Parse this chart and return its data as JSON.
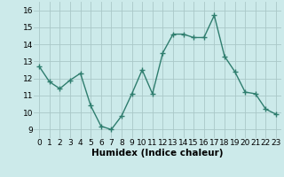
{
  "x": [
    0,
    1,
    2,
    3,
    4,
    5,
    6,
    7,
    8,
    9,
    10,
    11,
    12,
    13,
    14,
    15,
    16,
    17,
    18,
    19,
    20,
    21,
    22,
    23
  ],
  "y": [
    12.7,
    11.8,
    11.4,
    11.9,
    12.3,
    10.4,
    9.2,
    9.0,
    9.8,
    11.1,
    12.5,
    11.1,
    13.5,
    14.6,
    14.6,
    14.4,
    14.4,
    15.7,
    13.3,
    12.4,
    11.2,
    11.1,
    10.2,
    9.9
  ],
  "line_color": "#2e7d6e",
  "marker": "+",
  "marker_size": 4,
  "bg_color": "#cceaea",
  "grid_color": "#aac8c8",
  "xlabel": "Humidex (Indice chaleur)",
  "xlim": [
    -0.5,
    23.5
  ],
  "ylim": [
    8.5,
    16.5
  ],
  "yticks": [
    9,
    10,
    11,
    12,
    13,
    14,
    15,
    16
  ],
  "xticks": [
    0,
    1,
    2,
    3,
    4,
    5,
    6,
    7,
    8,
    9,
    10,
    11,
    12,
    13,
    14,
    15,
    16,
    17,
    18,
    19,
    20,
    21,
    22,
    23
  ],
  "xlabel_fontsize": 7.5,
  "tick_fontsize": 6.5
}
